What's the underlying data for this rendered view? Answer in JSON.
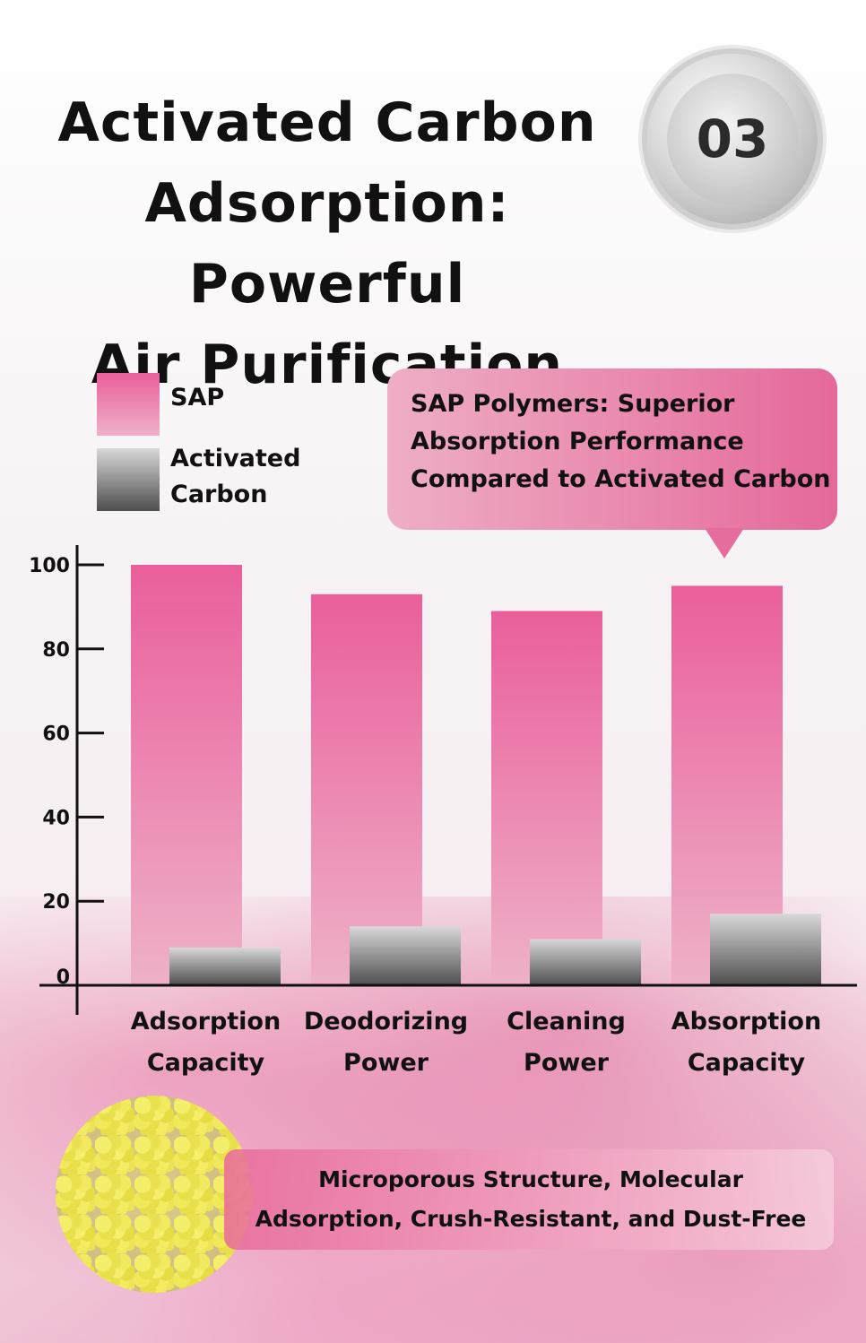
{
  "header": {
    "title_line1": "Activated Carbon",
    "title_line2": "Adsorption: Powerful",
    "title_line3": "Air Purification",
    "badge": "03"
  },
  "legend": {
    "sap": "SAP",
    "ac_line1": "Activated",
    "ac_line2": "Carbon"
  },
  "callout": {
    "line1": "SAP Polymers: Superior",
    "line2": "Absorption Performance",
    "line3": "Compared to Activated Carbon"
  },
  "info": {
    "line1": "Microporous Structure, Molecular",
    "line2": "Adsorption, Crush-Resistant, and Dust-Free"
  },
  "colors": {
    "sap_top": "#ea5f9a",
    "sap_bottom": "#eeb1c9",
    "ac_top": "#d8d8d8",
    "ac_bottom": "#4e4e4e"
  },
  "chart_data": {
    "type": "bar",
    "categories": [
      [
        "Adsorption",
        "Capacity"
      ],
      [
        "Deodorizing",
        "Power"
      ],
      [
        "Cleaning",
        "Power"
      ],
      [
        "Absorption",
        "Capacity"
      ]
    ],
    "series": [
      {
        "name": "SAP",
        "values": [
          100,
          93,
          89,
          95
        ]
      },
      {
        "name": "Activated Carbon",
        "values": [
          9,
          14,
          11,
          17
        ]
      }
    ],
    "yticks": [
      "0",
      "20",
      "40",
      "60",
      "80",
      "100"
    ],
    "ylim": [
      0,
      100
    ],
    "title": "",
    "xlabel": "",
    "ylabel": "",
    "grid": false,
    "legend_position": "top-left"
  }
}
